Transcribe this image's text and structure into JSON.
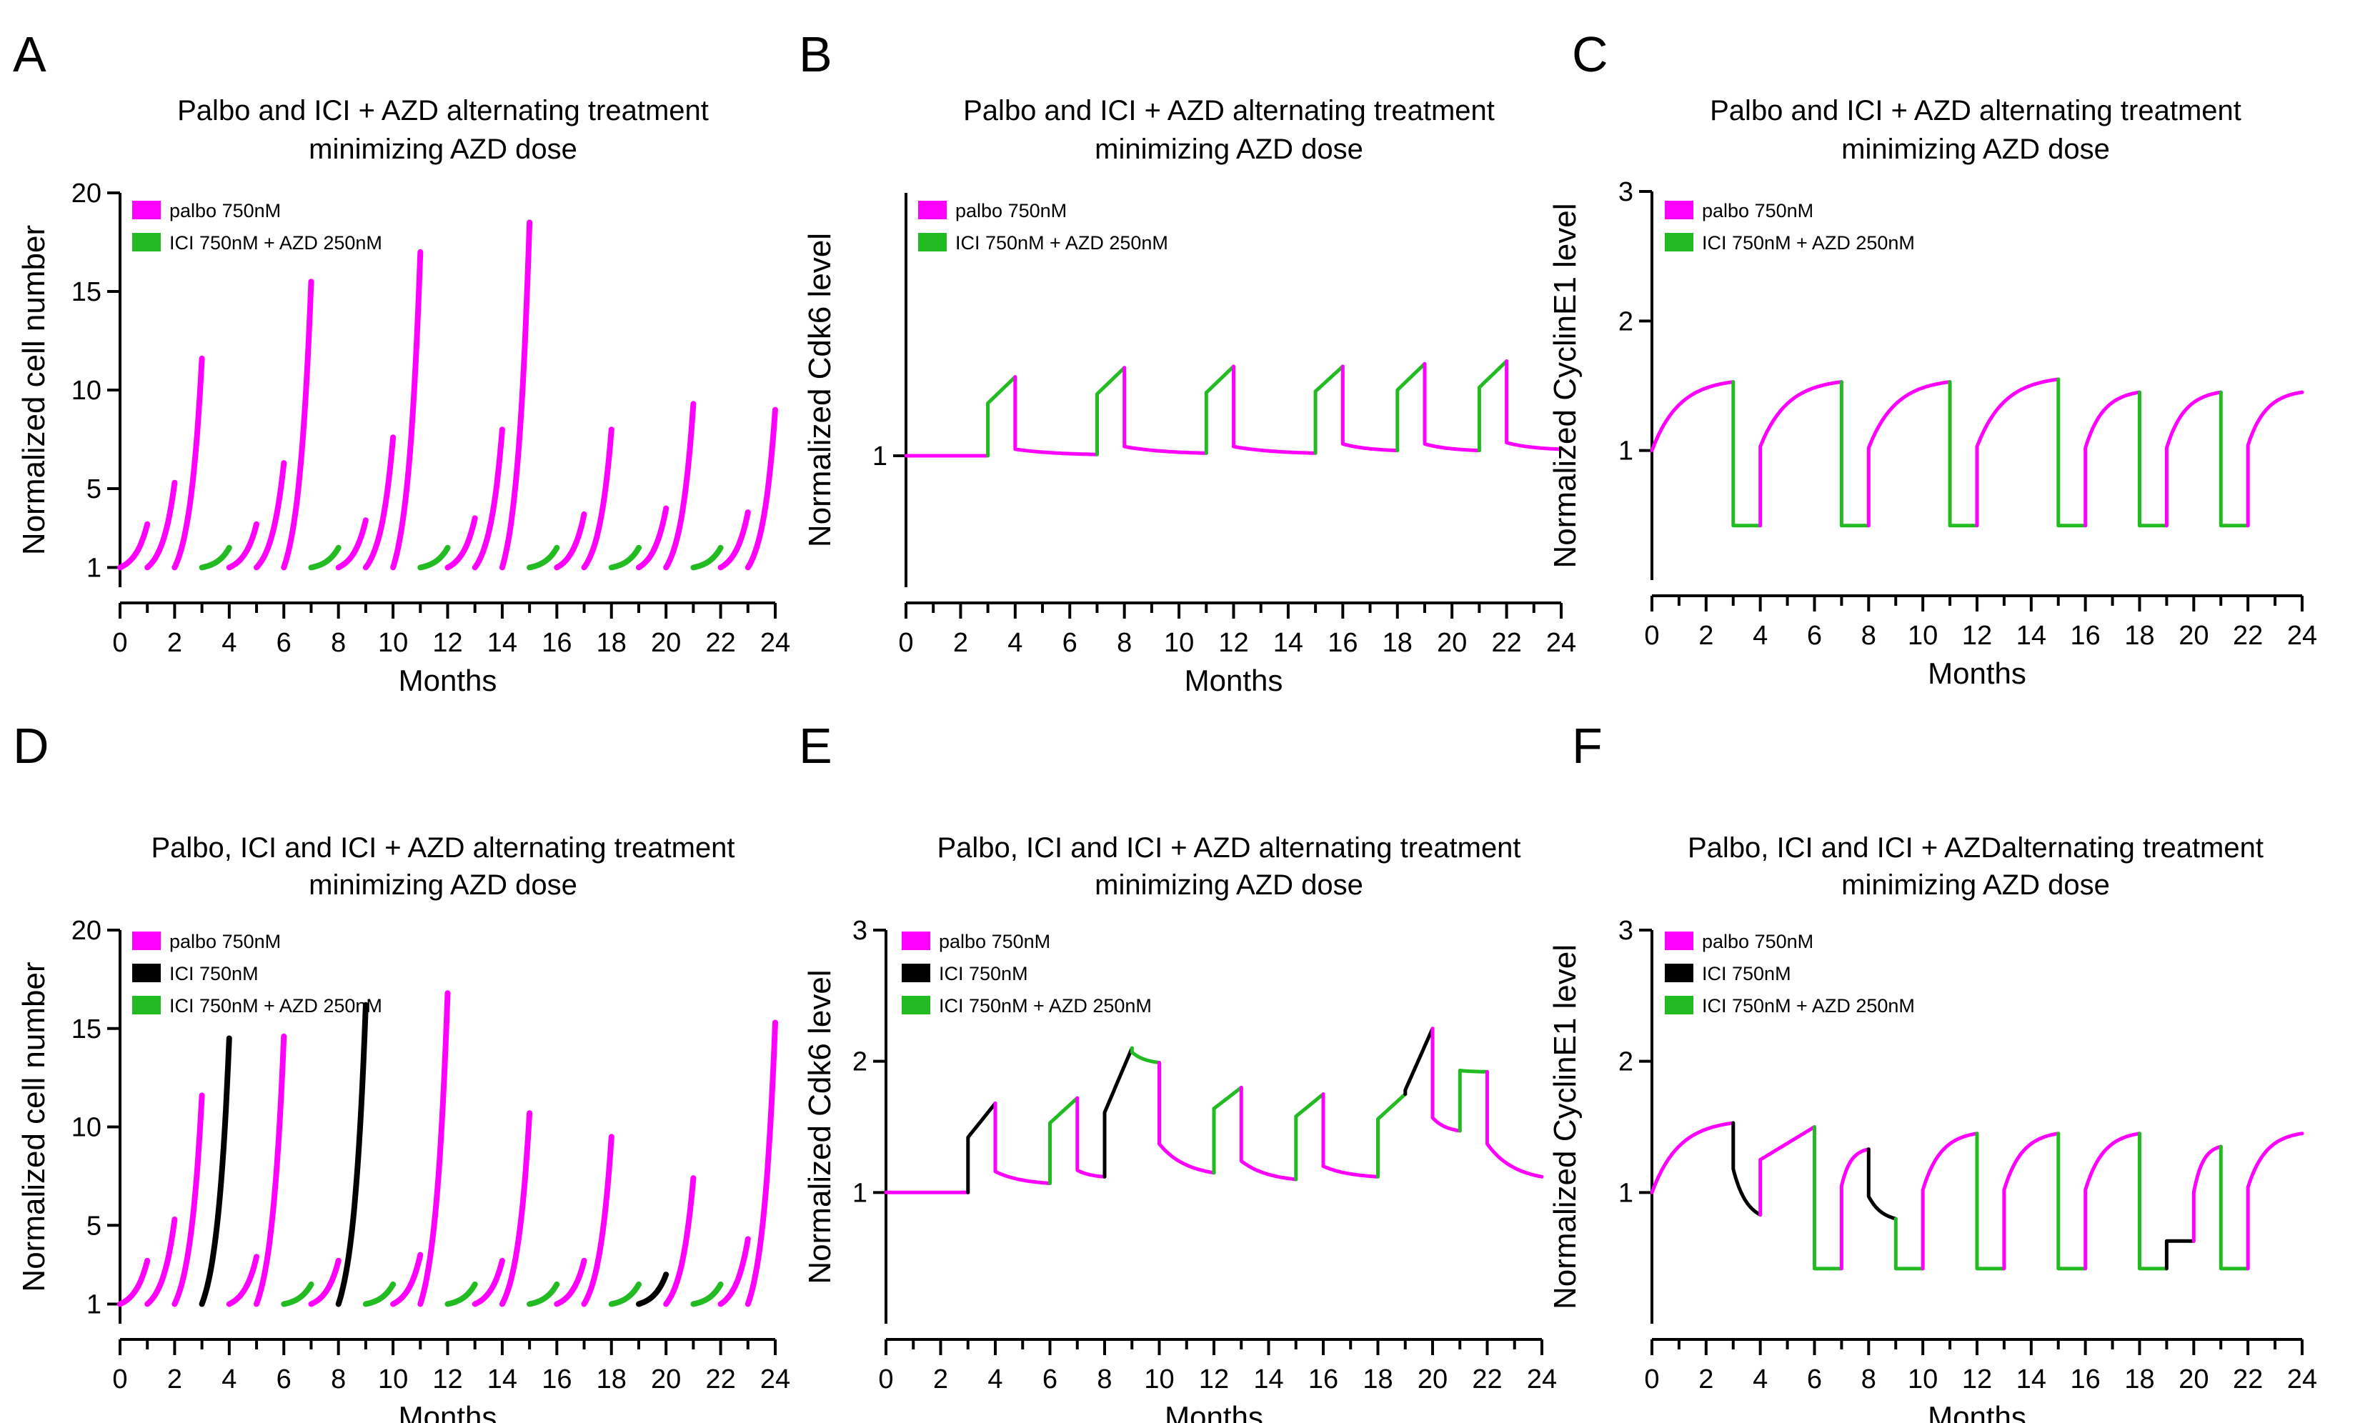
{
  "colors": {
    "palbo": "#ff00ff",
    "ici": "#000000",
    "azd": "#22bb22"
  },
  "legend": {
    "palbo": "palbo 750nM",
    "ici": "ICI 750nM",
    "azd": "ICI 750nM + AZD 250nM"
  },
  "panels": [
    {
      "letter": "A",
      "title1": "Palbo and ICI + AZD alternating treatment",
      "title2": "minimizing AZD dose",
      "ylabel": "Normalized cell number",
      "xlabel": "Months"
    },
    {
      "letter": "B",
      "title1": "Palbo and ICI + AZD alternating treatment",
      "title2": "minimizing AZD dose",
      "ylabel": "Normalized Cdk6 level",
      "xlabel": "Months"
    },
    {
      "letter": "C",
      "title1": "Palbo and ICI + AZD alternating treatment",
      "title2": "minimizing AZD dose",
      "ylabel": "Normalized CyclinE1 level",
      "xlabel": "Months"
    },
    {
      "letter": "D",
      "title1": "Palbo, ICI and ICI + AZD alternating treatment",
      "title2": "minimizing AZD dose",
      "ylabel": "Normalized cell number",
      "xlabel": "Months"
    },
    {
      "letter": "E",
      "title1": "Palbo, ICI and ICI + AZD alternating treatment",
      "title2": "minimizing AZD dose",
      "ylabel": "Normalized Cdk6 level",
      "xlabel": "Months"
    },
    {
      "letter": "F",
      "title1": "Palbo, ICI and ICI + AZDalternating treatment",
      "title2": "minimizing AZD dose",
      "ylabel": "Normalized CyclinE1 level",
      "xlabel": "Months"
    }
  ],
  "chart_data": [
    {
      "panel": "A",
      "type": "line",
      "xlim": [
        0,
        24
      ],
      "xticks": [
        0,
        2,
        4,
        6,
        8,
        10,
        12,
        14,
        16,
        18,
        20,
        22,
        24
      ],
      "ylim": [
        0,
        20
      ],
      "yticks": [
        1,
        5,
        10,
        15,
        20
      ],
      "legend_keys": [
        "palbo",
        "azd"
      ],
      "treatments": [
        {
          "x0": 0,
          "x1": 1,
          "drug": "palbo",
          "start": 1,
          "end": 3.2
        },
        {
          "x0": 1,
          "x1": 2,
          "drug": "palbo",
          "start": 1,
          "end": 5.3
        },
        {
          "x0": 2,
          "x1": 3,
          "drug": "palbo",
          "start": 1,
          "end": 11.6
        },
        {
          "x0": 3,
          "x1": 4,
          "drug": "azd",
          "start": 1,
          "end": 2
        },
        {
          "x0": 4,
          "x1": 5,
          "drug": "palbo",
          "start": 1,
          "end": 3.2
        },
        {
          "x0": 5,
          "x1": 6,
          "drug": "palbo",
          "start": 1,
          "end": 6.3
        },
        {
          "x0": 6,
          "x1": 7,
          "drug": "palbo",
          "start": 1,
          "end": 15.5
        },
        {
          "x0": 7,
          "x1": 8,
          "drug": "azd",
          "start": 1,
          "end": 2
        },
        {
          "x0": 8,
          "x1": 9,
          "drug": "palbo",
          "start": 1,
          "end": 3.4
        },
        {
          "x0": 9,
          "x1": 10,
          "drug": "palbo",
          "start": 1,
          "end": 7.6
        },
        {
          "x0": 10,
          "x1": 11,
          "drug": "palbo",
          "start": 1,
          "end": 17
        },
        {
          "x0": 11,
          "x1": 12,
          "drug": "azd",
          "start": 1,
          "end": 2
        },
        {
          "x0": 12,
          "x1": 13,
          "drug": "palbo",
          "start": 1,
          "end": 3.5
        },
        {
          "x0": 13,
          "x1": 14,
          "drug": "palbo",
          "start": 1,
          "end": 8
        },
        {
          "x0": 14,
          "x1": 15,
          "drug": "palbo",
          "start": 1,
          "end": 18.5
        },
        {
          "x0": 15,
          "x1": 16,
          "drug": "azd",
          "start": 1,
          "end": 2
        },
        {
          "x0": 16,
          "x1": 17,
          "drug": "palbo",
          "start": 1,
          "end": 3.7
        },
        {
          "x0": 17,
          "x1": 18,
          "drug": "palbo",
          "start": 1,
          "end": 8
        },
        {
          "x0": 18,
          "x1": 19,
          "drug": "azd",
          "start": 1,
          "end": 2
        },
        {
          "x0": 19,
          "x1": 20,
          "drug": "palbo",
          "start": 1,
          "end": 4
        },
        {
          "x0": 20,
          "x1": 21,
          "drug": "palbo",
          "start": 1,
          "end": 9.3
        },
        {
          "x0": 21,
          "x1": 22,
          "drug": "azd",
          "start": 1,
          "end": 2
        },
        {
          "x0": 22,
          "x1": 23,
          "drug": "palbo",
          "start": 1,
          "end": 3.8
        },
        {
          "x0": 23,
          "x1": 24,
          "drug": "palbo",
          "start": 1,
          "end": 9
        }
      ]
    },
    {
      "panel": "B",
      "type": "line",
      "xlim": [
        0,
        24
      ],
      "xticks": [
        0,
        2,
        4,
        6,
        8,
        10,
        12,
        14,
        16,
        18,
        20,
        22,
        24
      ],
      "ylim": [
        0,
        3
      ],
      "yticks": [
        1
      ],
      "ytick_labels": [
        "1"
      ],
      "legend_keys": [
        "palbo",
        "azd"
      ],
      "treatments": [
        {
          "x0": 0,
          "x1": 3,
          "drug": "palbo",
          "start": 1,
          "end": 1
        },
        {
          "x0": 3,
          "x1": 4,
          "drug": "azd",
          "start": 1.4,
          "end": 1.6
        },
        {
          "x0": 4,
          "x1": 7,
          "drug": "palbo",
          "start": 1.05,
          "end": 1.01
        },
        {
          "x0": 7,
          "x1": 8,
          "drug": "azd",
          "start": 1.47,
          "end": 1.67
        },
        {
          "x0": 8,
          "x1": 11,
          "drug": "palbo",
          "start": 1.07,
          "end": 1.02
        },
        {
          "x0": 11,
          "x1": 12,
          "drug": "azd",
          "start": 1.48,
          "end": 1.68
        },
        {
          "x0": 12,
          "x1": 15,
          "drug": "palbo",
          "start": 1.07,
          "end": 1.02
        },
        {
          "x0": 15,
          "x1": 16,
          "drug": "azd",
          "start": 1.49,
          "end": 1.68
        },
        {
          "x0": 16,
          "x1": 18,
          "drug": "palbo",
          "start": 1.09,
          "end": 1.04
        },
        {
          "x0": 18,
          "x1": 19,
          "drug": "azd",
          "start": 1.5,
          "end": 1.7
        },
        {
          "x0": 19,
          "x1": 21,
          "drug": "palbo",
          "start": 1.09,
          "end": 1.04
        },
        {
          "x0": 21,
          "x1": 22,
          "drug": "azd",
          "start": 1.52,
          "end": 1.72
        },
        {
          "x0": 22,
          "x1": 24,
          "drug": "palbo",
          "start": 1.1,
          "end": 1.05
        }
      ]
    },
    {
      "panel": "C",
      "type": "line",
      "xlim": [
        0,
        24
      ],
      "xticks": [
        0,
        2,
        4,
        6,
        8,
        10,
        12,
        14,
        16,
        18,
        20,
        22,
        24
      ],
      "ylim": [
        0,
        3
      ],
      "yticks": [
        1,
        2,
        3
      ],
      "legend_keys": [
        "palbo",
        "azd"
      ],
      "treatments": [
        {
          "x0": 0,
          "x1": 3,
          "drug": "palbo",
          "start": 1,
          "end": 1.53
        },
        {
          "x0": 3,
          "x1": 4,
          "drug": "azd",
          "start": 0.42,
          "end": 0.42
        },
        {
          "x0": 4,
          "x1": 7,
          "drug": "palbo",
          "start": 1.03,
          "end": 1.53
        },
        {
          "x0": 7,
          "x1": 8,
          "drug": "azd",
          "start": 0.42,
          "end": 0.42
        },
        {
          "x0": 8,
          "x1": 11,
          "drug": "palbo",
          "start": 1.02,
          "end": 1.53
        },
        {
          "x0": 11,
          "x1": 12,
          "drug": "azd",
          "start": 0.42,
          "end": 0.42
        },
        {
          "x0": 12,
          "x1": 15,
          "drug": "palbo",
          "start": 1.03,
          "end": 1.55
        },
        {
          "x0": 15,
          "x1": 16,
          "drug": "azd",
          "start": 0.42,
          "end": 0.42
        },
        {
          "x0": 16,
          "x1": 18,
          "drug": "palbo",
          "start": 1.02,
          "end": 1.45
        },
        {
          "x0": 18,
          "x1": 19,
          "drug": "azd",
          "start": 0.42,
          "end": 0.42
        },
        {
          "x0": 19,
          "x1": 21,
          "drug": "palbo",
          "start": 1.02,
          "end": 1.45
        },
        {
          "x0": 21,
          "x1": 22,
          "drug": "azd",
          "start": 0.42,
          "end": 0.42
        },
        {
          "x0": 22,
          "x1": 24,
          "drug": "palbo",
          "start": 1.04,
          "end": 1.45
        }
      ]
    },
    {
      "panel": "D",
      "type": "line",
      "xlim": [
        0,
        24
      ],
      "xticks": [
        0,
        2,
        4,
        6,
        8,
        10,
        12,
        14,
        16,
        18,
        20,
        22,
        24
      ],
      "ylim": [
        0,
        20
      ],
      "yticks": [
        1,
        5,
        10,
        15,
        20
      ],
      "legend_keys": [
        "palbo",
        "ici",
        "azd"
      ],
      "treatments": [
        {
          "x0": 0,
          "x1": 1,
          "drug": "palbo",
          "start": 1,
          "end": 3.2
        },
        {
          "x0": 1,
          "x1": 2,
          "drug": "palbo",
          "start": 1,
          "end": 5.3
        },
        {
          "x0": 2,
          "x1": 3,
          "drug": "palbo",
          "start": 1,
          "end": 11.6
        },
        {
          "x0": 3,
          "x1": 4,
          "drug": "ici",
          "start": 1,
          "end": 14.5
        },
        {
          "x0": 4,
          "x1": 5,
          "drug": "palbo",
          "start": 1,
          "end": 3.4
        },
        {
          "x0": 5,
          "x1": 6,
          "drug": "palbo",
          "start": 1,
          "end": 14.6
        },
        {
          "x0": 6,
          "x1": 7,
          "drug": "azd",
          "start": 1,
          "end": 2
        },
        {
          "x0": 7,
          "x1": 8,
          "drug": "palbo",
          "start": 1,
          "end": 3.2
        },
        {
          "x0": 8,
          "x1": 9,
          "drug": "ici",
          "start": 1,
          "end": 16.2
        },
        {
          "x0": 9,
          "x1": 10,
          "drug": "azd",
          "start": 1,
          "end": 2
        },
        {
          "x0": 10,
          "x1": 11,
          "drug": "palbo",
          "start": 1,
          "end": 3.5
        },
        {
          "x0": 11,
          "x1": 12,
          "drug": "palbo",
          "start": 1,
          "end": 16.8
        },
        {
          "x0": 12,
          "x1": 13,
          "drug": "azd",
          "start": 1,
          "end": 2
        },
        {
          "x0": 13,
          "x1": 14,
          "drug": "palbo",
          "start": 1,
          "end": 3.2
        },
        {
          "x0": 14,
          "x1": 15,
          "drug": "palbo",
          "start": 1,
          "end": 10.7
        },
        {
          "x0": 15,
          "x1": 16,
          "drug": "azd",
          "start": 1,
          "end": 2
        },
        {
          "x0": 16,
          "x1": 17,
          "drug": "palbo",
          "start": 1,
          "end": 3.2
        },
        {
          "x0": 17,
          "x1": 18,
          "drug": "palbo",
          "start": 1,
          "end": 9.5
        },
        {
          "x0": 18,
          "x1": 19,
          "drug": "azd",
          "start": 1,
          "end": 2
        },
        {
          "x0": 19,
          "x1": 20,
          "drug": "ici",
          "start": 1,
          "end": 2.5
        },
        {
          "x0": 20,
          "x1": 21,
          "drug": "palbo",
          "start": 1,
          "end": 7.4
        },
        {
          "x0": 21,
          "x1": 22,
          "drug": "azd",
          "start": 1,
          "end": 2
        },
        {
          "x0": 22,
          "x1": 23,
          "drug": "palbo",
          "start": 1,
          "end": 4.3
        },
        {
          "x0": 23,
          "x1": 24,
          "drug": "palbo",
          "start": 1,
          "end": 15.3
        }
      ]
    },
    {
      "panel": "E",
      "type": "line",
      "xlim": [
        0,
        24
      ],
      "xticks": [
        0,
        2,
        4,
        6,
        8,
        10,
        12,
        14,
        16,
        18,
        20,
        22,
        24
      ],
      "ylim": [
        0,
        3
      ],
      "yticks": [
        1,
        2,
        3
      ],
      "legend_keys": [
        "palbo",
        "ici",
        "azd"
      ],
      "treatments": [
        {
          "x0": 0,
          "x1": 3,
          "drug": "palbo",
          "start": 1,
          "end": 1
        },
        {
          "x0": 3,
          "x1": 4,
          "drug": "ici",
          "start": 1.42,
          "end": 1.68
        },
        {
          "x0": 4,
          "x1": 6,
          "drug": "palbo",
          "start": 1.16,
          "end": 1.07
        },
        {
          "x0": 6,
          "x1": 7,
          "drug": "azd",
          "start": 1.53,
          "end": 1.72
        },
        {
          "x0": 7,
          "x1": 8,
          "drug": "palbo",
          "start": 1.17,
          "end": 1.12
        },
        {
          "x0": 8,
          "x1": 9,
          "drug": "ici",
          "start": 1.61,
          "end": 2.1
        },
        {
          "x0": 9,
          "x1": 10,
          "drug": "azd",
          "start": 2.07,
          "end": 1.99
        },
        {
          "x0": 10,
          "x1": 12,
          "drug": "palbo",
          "start": 1.37,
          "end": 1.15
        },
        {
          "x0": 12,
          "x1": 13,
          "drug": "azd",
          "start": 1.64,
          "end": 1.8
        },
        {
          "x0": 13,
          "x1": 15,
          "drug": "palbo",
          "start": 1.24,
          "end": 1.1
        },
        {
          "x0": 15,
          "x1": 16,
          "drug": "azd",
          "start": 1.58,
          "end": 1.75
        },
        {
          "x0": 16,
          "x1": 18,
          "drug": "palbo",
          "start": 1.2,
          "end": 1.12
        },
        {
          "x0": 18,
          "x1": 19,
          "drug": "azd",
          "start": 1.56,
          "end": 1.75
        },
        {
          "x0": 19,
          "x1": 20,
          "drug": "ici",
          "start": 1.78,
          "end": 2.25
        },
        {
          "x0": 20,
          "x1": 21,
          "drug": "palbo",
          "start": 1.57,
          "end": 1.47
        },
        {
          "x0": 21,
          "x1": 22,
          "drug": "azd",
          "start": 1.93,
          "end": 1.92
        },
        {
          "x0": 22,
          "x1": 24,
          "drug": "palbo",
          "start": 1.37,
          "end": 1.12
        }
      ]
    },
    {
      "panel": "F",
      "type": "line",
      "xlim": [
        0,
        24
      ],
      "xticks": [
        0,
        2,
        4,
        6,
        8,
        10,
        12,
        14,
        16,
        18,
        20,
        22,
        24
      ],
      "ylim": [
        0,
        3
      ],
      "yticks": [
        1,
        2,
        3
      ],
      "legend_keys": [
        "palbo",
        "ici",
        "azd"
      ],
      "treatments": [
        {
          "x0": 0,
          "x1": 3,
          "drug": "palbo",
          "start": 1,
          "end": 1.53
        },
        {
          "x0": 3,
          "x1": 4,
          "drug": "ici",
          "start": 1.18,
          "end": 0.83
        },
        {
          "x0": 4,
          "x1": 6,
          "drug": "palbo",
          "start": 1.25,
          "end": 1.5
        },
        {
          "x0": 6,
          "x1": 7,
          "drug": "azd",
          "start": 0.42,
          "end": 0.42
        },
        {
          "x0": 7,
          "x1": 8,
          "drug": "palbo",
          "start": 1.05,
          "end": 1.33
        },
        {
          "x0": 8,
          "x1": 9,
          "drug": "ici",
          "start": 0.97,
          "end": 0.8
        },
        {
          "x0": 9,
          "x1": 10,
          "drug": "azd",
          "start": 0.42,
          "end": 0.42
        },
        {
          "x0": 10,
          "x1": 12,
          "drug": "palbo",
          "start": 1.02,
          "end": 1.45
        },
        {
          "x0": 12,
          "x1": 13,
          "drug": "azd",
          "start": 0.42,
          "end": 0.42
        },
        {
          "x0": 13,
          "x1": 15,
          "drug": "palbo",
          "start": 1.02,
          "end": 1.45
        },
        {
          "x0": 15,
          "x1": 16,
          "drug": "azd",
          "start": 0.42,
          "end": 0.42
        },
        {
          "x0": 16,
          "x1": 18,
          "drug": "palbo",
          "start": 1.02,
          "end": 1.45
        },
        {
          "x0": 18,
          "x1": 19,
          "drug": "azd",
          "start": 0.42,
          "end": 0.42
        },
        {
          "x0": 19,
          "x1": 20,
          "drug": "ici",
          "start": 0.63,
          "end": 0.63
        },
        {
          "x0": 20,
          "x1": 21,
          "drug": "palbo",
          "start": 1,
          "end": 1.35
        },
        {
          "x0": 21,
          "x1": 22,
          "drug": "azd",
          "start": 0.42,
          "end": 0.42
        },
        {
          "x0": 22,
          "x1": 24,
          "drug": "palbo",
          "start": 1.04,
          "end": 1.45
        }
      ]
    }
  ]
}
